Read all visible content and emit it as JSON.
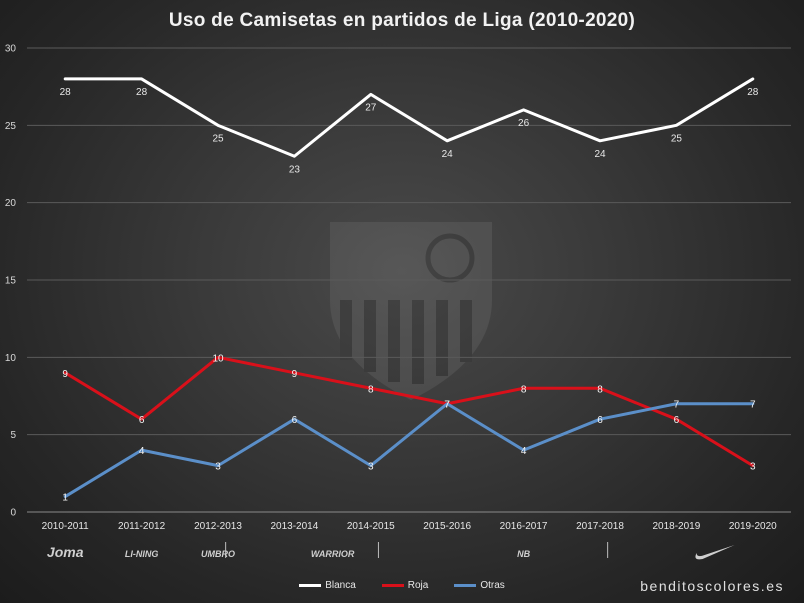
{
  "chart_data": {
    "type": "line",
    "title": "Uso de Camisetas en partidos de Liga (2010-2020)",
    "categories": [
      "2010-2011",
      "2011-2012",
      "2012-2013",
      "2013-2014",
      "2014-2015",
      "2015-2016",
      "2016-2017",
      "2017-2018",
      "2018-2019",
      "2019-2020"
    ],
    "ylim": [
      0,
      30
    ],
    "yticks": [
      0,
      5,
      10,
      15,
      20,
      25,
      30
    ],
    "grid": true,
    "legend_position": "bottom",
    "series": [
      {
        "name": "Blanca",
        "color": "#ffffff",
        "values": [
          28,
          28,
          25,
          23,
          27,
          24,
          26,
          24,
          25,
          28
        ]
      },
      {
        "name": "Roja",
        "color": "#d9101a",
        "values": [
          9,
          6,
          10,
          9,
          8,
          7,
          8,
          8,
          6,
          3
        ]
      },
      {
        "name": "Otras",
        "color": "#5b8fc9",
        "values": [
          1,
          4,
          3,
          6,
          3,
          7,
          4,
          6,
          7,
          7
        ]
      }
    ],
    "brands": [
      {
        "name": "Joma",
        "label": "Joma",
        "icon": "joma-logo",
        "at": 0
      },
      {
        "name": "Li-Ning",
        "label": "LI-NING",
        "icon": "li-ning-logo",
        "at": 1
      },
      {
        "name": "Umbro",
        "label": "UMBRO",
        "icon": "umbro-logo",
        "at": 2
      },
      {
        "name": "Warrior",
        "label": "WARRIOR",
        "icon": "warrior-logo",
        "at": 3.5
      },
      {
        "name": "New Balance",
        "label": "NB",
        "icon": "new-balance-logo",
        "at": 6
      },
      {
        "name": "Nike",
        "label": "",
        "icon": "nike-swoosh-logo",
        "at": 8.5
      }
    ],
    "brand_separators": [
      2.6,
      4.6,
      7.6
    ]
  },
  "watermark": "benditoscolores.es",
  "background_crest": "sevilla-fc-crest"
}
